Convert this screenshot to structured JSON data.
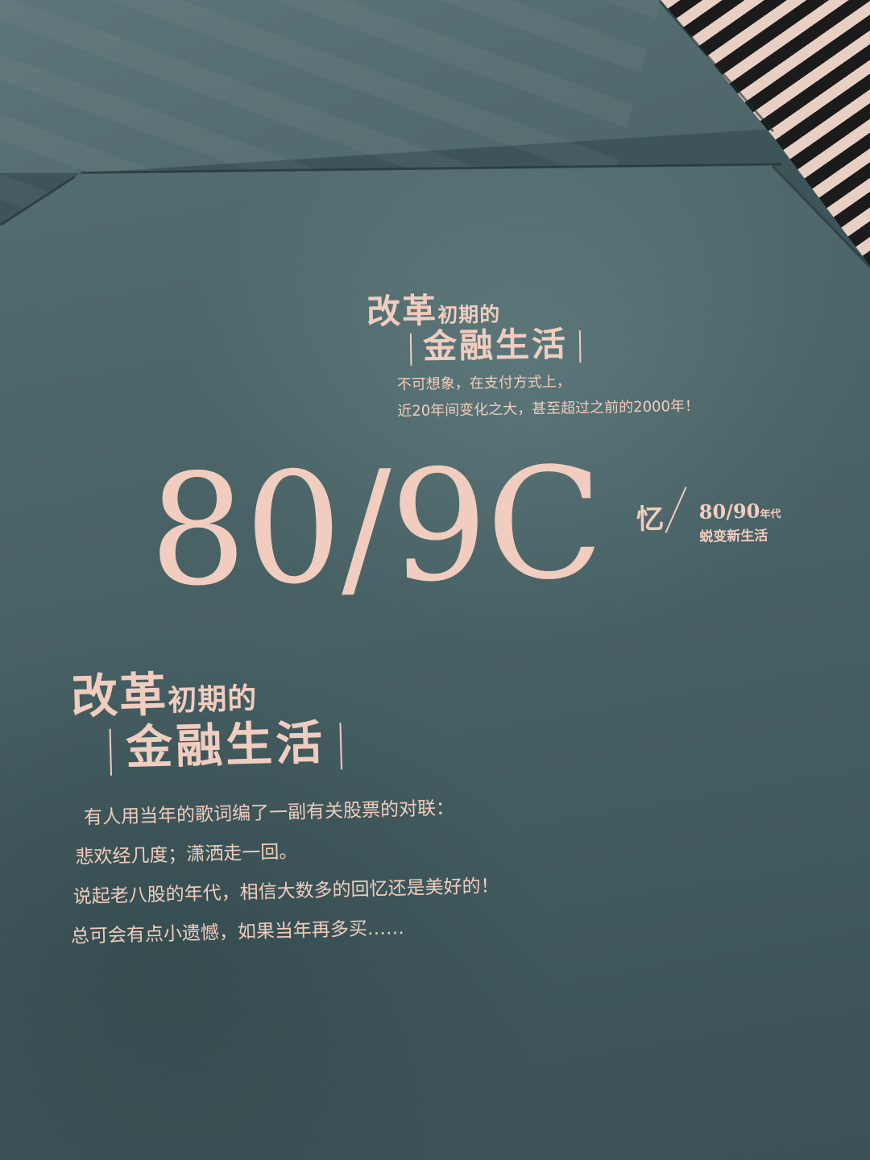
{
  "heading1": {
    "big": "改革",
    "small": "初期的",
    "line2": "金融生活"
  },
  "subtitle1": {
    "line1": "不可想象，在支付方式上，",
    "line2": "近20年间变化之大，甚至超过之前的2000年！"
  },
  "big_number": "80/9C",
  "memory_char": "忆",
  "era": {
    "number": "80/90",
    "tag": "年代",
    "line2": "蜕变新生活"
  },
  "heading2": {
    "big": "改革",
    "small": "初期的",
    "line2": "金融生活"
  },
  "paragraph": [
    "有人用当年的歌词编了一副有关股票的对联：",
    "悲欢经几度；潇洒走一回。",
    "说起老八股的年代，相信大数多的回忆还是美好的！",
    "总可会有点小遗憾，如果当年再多买……"
  ],
  "colors": {
    "background": "#4a6367",
    "text": "#f0cdbf"
  }
}
